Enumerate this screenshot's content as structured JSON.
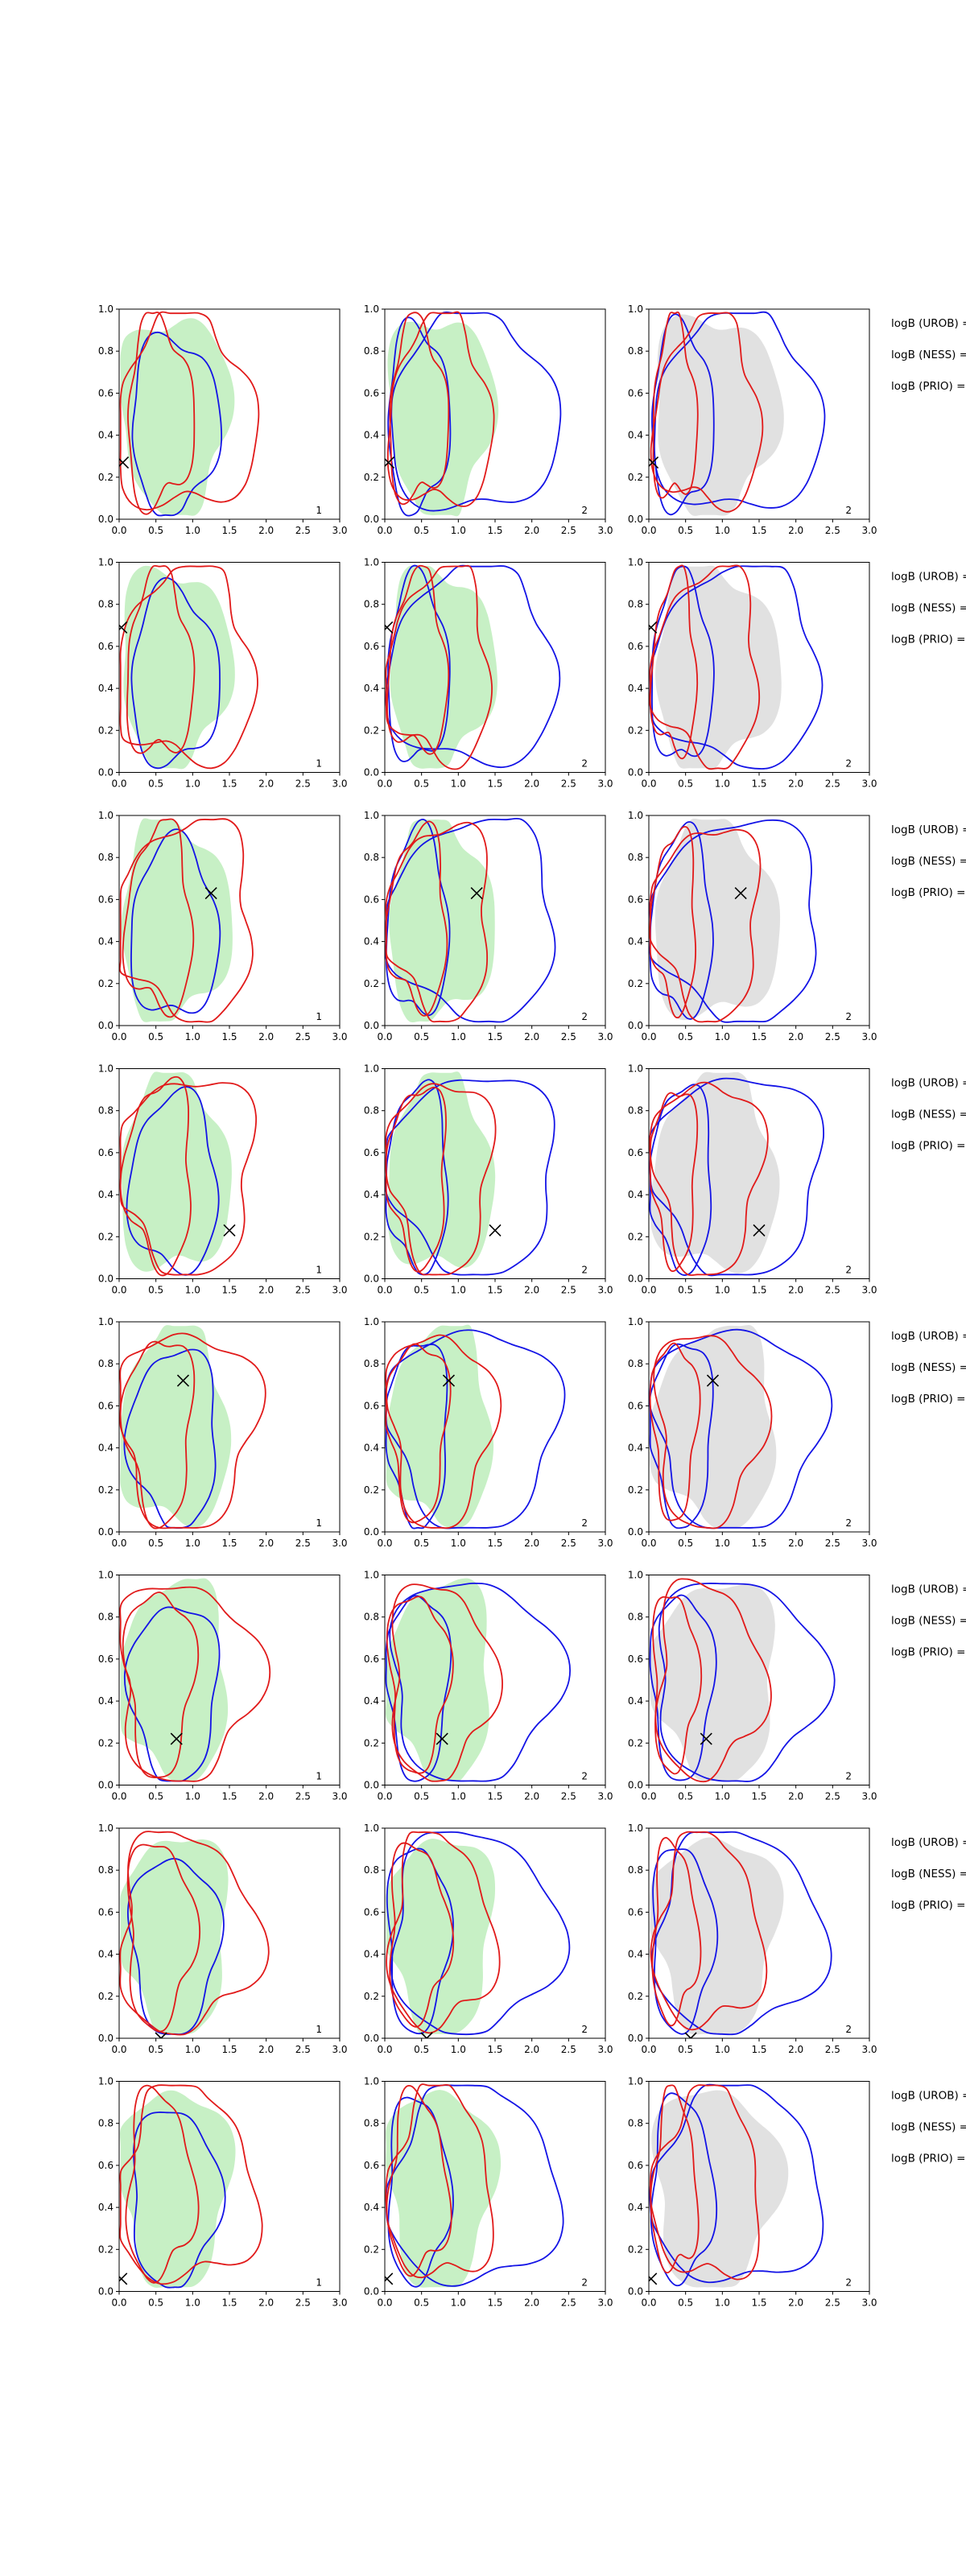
{
  "chart_data": {
    "type": "contour-grid",
    "xlim": [
      0.0,
      3.0
    ],
    "ylim": [
      0.0,
      1.0
    ],
    "x_ticks": [
      "0.0",
      "0.5",
      "1.0",
      "1.5",
      "2.0",
      "2.5",
      "3.0"
    ],
    "y_ticks": [
      "0.0",
      "0.2",
      "0.4",
      "0.6",
      "0.8",
      "1.0"
    ],
    "columns": [
      {
        "panel_label": "1",
        "contours": [
          "green-fill",
          "blue-line",
          "red-line"
        ]
      },
      {
        "panel_label": "2",
        "contours": [
          "green-fill",
          "blue-line",
          "red-line"
        ]
      },
      {
        "panel_label": "2",
        "contours": [
          "grey-fill",
          "blue-line",
          "red-line"
        ]
      }
    ],
    "side_labels": [
      "logB (UROB) =",
      "logB (NESS) =",
      "logB (PRIO) ="
    ],
    "rows": [
      {
        "row": 1,
        "marker": {
          "x": 0.05,
          "y": 0.27,
          "type": "x-partial-left"
        }
      },
      {
        "row": 2,
        "marker": {
          "x": 0.03,
          "y": 0.69,
          "type": "x-partial-left"
        }
      },
      {
        "row": 3,
        "marker": {
          "x": 1.25,
          "y": 0.63,
          "type": "x"
        }
      },
      {
        "row": 4,
        "marker": {
          "x": 1.5,
          "y": 0.23,
          "type": "x"
        }
      },
      {
        "row": 5,
        "marker": {
          "x": 0.87,
          "y": 0.72,
          "type": "x"
        }
      },
      {
        "row": 6,
        "marker": {
          "x": 0.78,
          "y": 0.22,
          "type": "x"
        }
      },
      {
        "row": 7,
        "marker": {
          "x": 0.57,
          "y": 0.0,
          "type": "x-partial-bottom"
        }
      },
      {
        "row": 8,
        "marker": {
          "x": 0.03,
          "y": 0.06,
          "type": "x-partial-left"
        }
      }
    ],
    "colors": {
      "green_fill": "#b9ecb6",
      "grey_fill": "#d4d4d4",
      "blue_line": "#1414e6",
      "red_line": "#e11a1a",
      "marker": "#000000"
    }
  }
}
